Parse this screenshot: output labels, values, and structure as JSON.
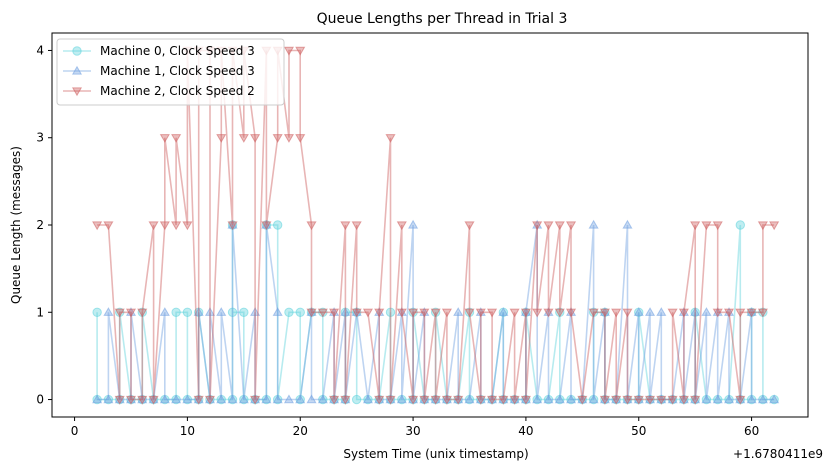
{
  "chart_data": {
    "type": "line",
    "title": "Queue Lengths per Thread in Trial 3",
    "xlabel": "System Time (unix timestamp)",
    "ylabel": "Queue Length (messages)",
    "offset_label": "+1.6780411e9",
    "xlim": [
      -2,
      65
    ],
    "ylim": [
      -0.2,
      4.2
    ],
    "x_ticks": [
      0,
      10,
      20,
      30,
      40,
      50,
      60
    ],
    "y_ticks": [
      0,
      1,
      2,
      3,
      4
    ],
    "grid": false,
    "legend_position": "top-left",
    "series": [
      {
        "name": "Machine 0, Clock Speed 3",
        "color": "#5fd3dc",
        "marker": "circle",
        "points": [
          [
            2,
            1
          ],
          [
            2,
            0
          ],
          [
            3,
            0
          ],
          [
            4,
            0
          ],
          [
            4,
            1
          ],
          [
            5,
            0
          ],
          [
            6,
            0
          ],
          [
            6,
            1
          ],
          [
            7,
            0
          ],
          [
            8,
            0
          ],
          [
            9,
            0
          ],
          [
            9,
            1
          ],
          [
            10,
            1
          ],
          [
            10,
            0
          ],
          [
            11,
            0
          ],
          [
            11,
            1
          ],
          [
            12,
            0
          ],
          [
            13,
            0
          ],
          [
            14,
            0
          ],
          [
            14,
            2
          ],
          [
            14,
            1
          ],
          [
            15,
            1
          ],
          [
            15,
            0
          ],
          [
            16,
            0
          ],
          [
            17,
            0
          ],
          [
            17,
            2
          ],
          [
            18,
            2
          ],
          [
            18,
            0
          ],
          [
            19,
            1
          ],
          [
            20,
            1
          ],
          [
            20,
            0
          ],
          [
            21,
            1
          ],
          [
            22,
            1
          ],
          [
            22,
            0
          ],
          [
            23,
            0
          ],
          [
            24,
            0
          ],
          [
            24,
            1
          ],
          [
            25,
            1
          ],
          [
            25,
            0
          ],
          [
            26,
            0
          ],
          [
            27,
            0
          ],
          [
            28,
            1
          ],
          [
            28,
            0
          ],
          [
            29,
            0
          ],
          [
            30,
            0
          ],
          [
            30,
            1
          ],
          [
            31,
            0
          ],
          [
            32,
            0
          ],
          [
            32,
            1
          ],
          [
            33,
            0
          ],
          [
            34,
            0
          ],
          [
            35,
            1
          ],
          [
            35,
            0
          ],
          [
            36,
            0
          ],
          [
            37,
            0
          ],
          [
            38,
            1
          ],
          [
            38,
            0
          ],
          [
            39,
            0
          ],
          [
            40,
            0
          ],
          [
            40,
            1
          ],
          [
            41,
            0
          ],
          [
            42,
            0
          ],
          [
            43,
            1
          ],
          [
            43,
            0
          ],
          [
            44,
            0
          ],
          [
            45,
            0
          ],
          [
            46,
            0
          ],
          [
            46,
            1
          ],
          [
            47,
            1
          ],
          [
            47,
            0
          ],
          [
            48,
            0
          ],
          [
            49,
            0
          ],
          [
            50,
            0
          ],
          [
            50,
            1
          ],
          [
            51,
            0
          ],
          [
            52,
            0
          ],
          [
            53,
            0
          ],
          [
            54,
            0
          ],
          [
            55,
            0
          ],
          [
            55,
            1
          ],
          [
            56,
            0
          ],
          [
            57,
            0
          ],
          [
            58,
            0
          ],
          [
            59,
            2
          ],
          [
            59,
            0
          ],
          [
            60,
            0
          ],
          [
            60,
            1
          ],
          [
            61,
            1
          ],
          [
            61,
            0
          ],
          [
            62,
            0
          ]
        ]
      },
      {
        "name": "Machine 1, Clock Speed 3",
        "color": "#6f9fe0",
        "marker": "triangle-up",
        "points": [
          [
            2,
            0
          ],
          [
            3,
            0
          ],
          [
            3,
            1
          ],
          [
            4,
            0
          ],
          [
            5,
            0
          ],
          [
            5,
            1
          ],
          [
            6,
            0
          ],
          [
            7,
            0
          ],
          [
            8,
            1
          ],
          [
            8,
            0
          ],
          [
            9,
            0
          ],
          [
            10,
            0
          ],
          [
            11,
            0
          ],
          [
            11,
            1
          ],
          [
            12,
            0
          ],
          [
            12,
            1
          ],
          [
            13,
            0
          ],
          [
            13,
            1
          ],
          [
            14,
            0
          ],
          [
            14,
            2
          ],
          [
            15,
            0
          ],
          [
            16,
            1
          ],
          [
            16,
            0
          ],
          [
            17,
            0
          ],
          [
            17,
            2
          ],
          [
            18,
            1
          ],
          [
            18,
            0
          ],
          [
            19,
            0
          ],
          [
            20,
            0
          ],
          [
            21,
            1
          ],
          [
            21,
            0
          ],
          [
            22,
            0
          ],
          [
            23,
            1
          ],
          [
            23,
            0
          ],
          [
            24,
            1
          ],
          [
            24,
            0
          ],
          [
            25,
            1
          ],
          [
            26,
            0
          ],
          [
            27,
            1
          ],
          [
            27,
            0
          ],
          [
            28,
            0
          ],
          [
            29,
            1
          ],
          [
            29,
            0
          ],
          [
            30,
            2
          ],
          [
            30,
            0
          ],
          [
            31,
            1
          ],
          [
            31,
            0
          ],
          [
            32,
            0
          ],
          [
            33,
            0
          ],
          [
            34,
            1
          ],
          [
            34,
            0
          ],
          [
            35,
            0
          ],
          [
            36,
            1
          ],
          [
            36,
            0
          ],
          [
            37,
            0
          ],
          [
            38,
            1
          ],
          [
            38,
            0
          ],
          [
            39,
            0
          ],
          [
            40,
            0
          ],
          [
            40,
            1
          ],
          [
            41,
            2
          ],
          [
            41,
            0
          ],
          [
            42,
            1
          ],
          [
            42,
            0
          ],
          [
            43,
            0
          ],
          [
            44,
            1
          ],
          [
            44,
            0
          ],
          [
            45,
            0
          ],
          [
            46,
            2
          ],
          [
            46,
            0
          ],
          [
            47,
            1
          ],
          [
            47,
            0
          ],
          [
            48,
            0
          ],
          [
            49,
            2
          ],
          [
            49,
            0
          ],
          [
            50,
            1
          ],
          [
            50,
            0
          ],
          [
            51,
            1
          ],
          [
            51,
            0
          ],
          [
            52,
            1
          ],
          [
            52,
            0
          ],
          [
            53,
            0
          ],
          [
            54,
            1
          ],
          [
            54,
            0
          ],
          [
            55,
            1
          ],
          [
            55,
            0
          ],
          [
            56,
            1
          ],
          [
            56,
            0
          ],
          [
            57,
            1
          ],
          [
            57,
            0
          ],
          [
            58,
            1
          ],
          [
            58,
            0
          ],
          [
            59,
            0
          ],
          [
            60,
            1
          ],
          [
            60,
            0
          ],
          [
            61,
            0
          ],
          [
            62,
            0
          ]
        ]
      },
      {
        "name": "Machine 2, Clock Speed 2",
        "color": "#cd5c5c",
        "marker": "triangle-down",
        "points": [
          [
            2,
            2
          ],
          [
            3,
            2
          ],
          [
            4,
            0
          ],
          [
            4,
            1
          ],
          [
            5,
            1
          ],
          [
            5,
            0
          ],
          [
            6,
            0
          ],
          [
            6,
            1
          ],
          [
            7,
            2
          ],
          [
            7,
            0
          ],
          [
            8,
            2
          ],
          [
            8,
            3
          ],
          [
            9,
            2
          ],
          [
            9,
            3
          ],
          [
            10,
            2
          ],
          [
            10,
            4
          ],
          [
            11,
            0
          ],
          [
            11,
            4
          ],
          [
            12,
            4
          ],
          [
            12,
            0
          ],
          [
            13,
            3
          ],
          [
            13,
            4
          ],
          [
            14,
            2
          ],
          [
            14,
            4
          ],
          [
            15,
            3
          ],
          [
            15,
            4
          ],
          [
            16,
            3
          ],
          [
            16,
            0
          ],
          [
            17,
            4
          ],
          [
            17,
            2
          ],
          [
            18,
            3
          ],
          [
            18,
            4
          ],
          [
            19,
            3
          ],
          [
            19,
            4
          ],
          [
            20,
            4
          ],
          [
            20,
            3
          ],
          [
            21,
            2
          ],
          [
            21,
            1
          ],
          [
            22,
            1
          ],
          [
            23,
            1
          ],
          [
            23,
            0
          ],
          [
            24,
            2
          ],
          [
            24,
            0
          ],
          [
            25,
            2
          ],
          [
            25,
            1
          ],
          [
            26,
            1
          ],
          [
            27,
            0
          ],
          [
            27,
            1
          ],
          [
            28,
            3
          ],
          [
            28,
            0
          ],
          [
            29,
            2
          ],
          [
            29,
            1
          ],
          [
            30,
            0
          ],
          [
            30,
            1
          ],
          [
            31,
            1
          ],
          [
            31,
            0
          ],
          [
            32,
            1
          ],
          [
            32,
            0
          ],
          [
            33,
            1
          ],
          [
            33,
            0
          ],
          [
            34,
            0
          ],
          [
            35,
            2
          ],
          [
            35,
            1
          ],
          [
            36,
            0
          ],
          [
            36,
            1
          ],
          [
            37,
            1
          ],
          [
            37,
            0
          ],
          [
            38,
            0
          ],
          [
            39,
            1
          ],
          [
            39,
            0
          ],
          [
            40,
            1
          ],
          [
            40,
            0
          ],
          [
            41,
            2
          ],
          [
            41,
            1
          ],
          [
            42,
            2
          ],
          [
            42,
            1
          ],
          [
            43,
            2
          ],
          [
            43,
            1
          ],
          [
            44,
            2
          ],
          [
            44,
            1
          ],
          [
            45,
            0
          ],
          [
            46,
            1
          ],
          [
            47,
            1
          ],
          [
            47,
            0
          ],
          [
            48,
            1
          ],
          [
            48,
            0
          ],
          [
            49,
            1
          ],
          [
            49,
            0
          ],
          [
            50,
            0
          ],
          [
            51,
            0
          ],
          [
            52,
            0
          ],
          [
            53,
            0
          ],
          [
            53,
            1
          ],
          [
            54,
            0
          ],
          [
            54,
            1
          ],
          [
            55,
            2
          ],
          [
            55,
            0
          ],
          [
            56,
            2
          ],
          [
            57,
            2
          ],
          [
            57,
            1
          ],
          [
            58,
            1
          ],
          [
            59,
            0
          ],
          [
            59,
            1
          ],
          [
            60,
            1
          ],
          [
            61,
            1
          ],
          [
            61,
            2
          ],
          [
            62,
            2
          ]
        ]
      }
    ]
  }
}
